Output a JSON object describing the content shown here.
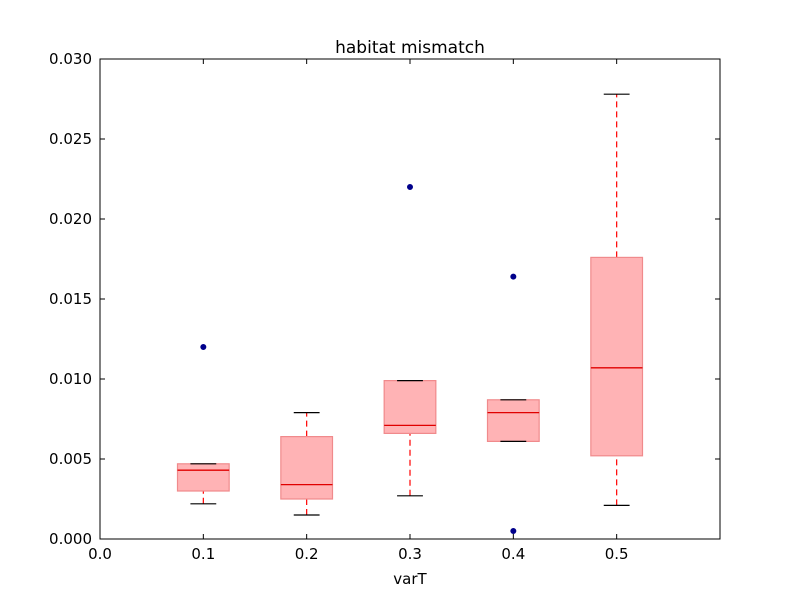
{
  "chart_data": {
    "type": "boxplot",
    "title": "habitat mismatch",
    "xlabel": "varT",
    "ylabel": "",
    "xlim": [
      0.0,
      0.6
    ],
    "ylim": [
      0.0,
      0.03
    ],
    "xticks": [
      0.0,
      0.1,
      0.2,
      0.3,
      0.4,
      0.5
    ],
    "xtick_labels": [
      "0.0",
      "0.1",
      "0.2",
      "0.3",
      "0.4",
      "0.5"
    ],
    "yticks": [
      0.0,
      0.005,
      0.01,
      0.015,
      0.02,
      0.025,
      0.03
    ],
    "ytick_labels": [
      "0.000",
      "0.005",
      "0.010",
      "0.015",
      "0.020",
      "0.025",
      "0.030"
    ],
    "grid": false,
    "colors": {
      "box_fill": "#ffb3b5",
      "box_edge": "#f08a8c",
      "median": "#e00000",
      "whisker": "#ff0000",
      "cap": "#000000",
      "outlier": "#00008b"
    },
    "boxes": [
      {
        "x": 0.1,
        "whislo": 0.0022,
        "q1": 0.003,
        "med": 0.0043,
        "q3": 0.0047,
        "whishi": 0.0047,
        "fliers": [
          0.012
        ]
      },
      {
        "x": 0.2,
        "whislo": 0.0015,
        "q1": 0.0025,
        "med": 0.0034,
        "q3": 0.0064,
        "whishi": 0.0079,
        "fliers": []
      },
      {
        "x": 0.3,
        "whislo": 0.0027,
        "q1": 0.0066,
        "med": 0.0071,
        "q3": 0.0099,
        "whishi": 0.0099,
        "fliers": [
          0.022
        ]
      },
      {
        "x": 0.4,
        "whislo": 0.0061,
        "q1": 0.0061,
        "med": 0.0079,
        "q3": 0.0087,
        "whishi": 0.0087,
        "fliers": [
          0.0164,
          0.0005
        ]
      },
      {
        "x": 0.5,
        "whislo": 0.0021,
        "q1": 0.0052,
        "med": 0.0107,
        "q3": 0.0176,
        "whishi": 0.0278,
        "fliers": []
      }
    ],
    "box_width": 0.05
  }
}
